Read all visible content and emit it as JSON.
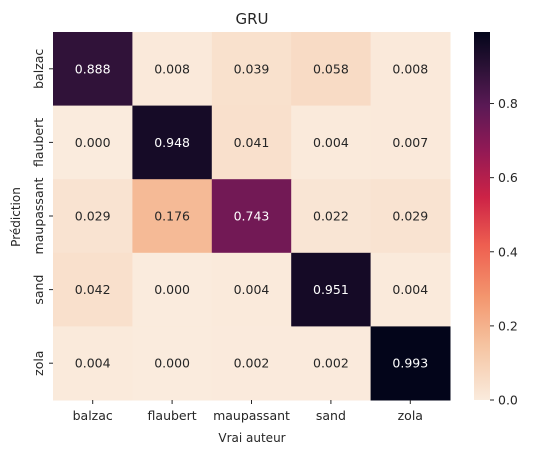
{
  "chart_data": {
    "type": "heatmap",
    "title": "GRU",
    "xlabel": "Vrai auteur",
    "ylabel": "Prédiction",
    "x_categories": [
      "balzac",
      "flaubert",
      "maupassant",
      "sand",
      "zola"
    ],
    "y_categories": [
      "balzac",
      "flaubert",
      "maupassant",
      "sand",
      "zola"
    ],
    "values": [
      [
        0.888,
        0.008,
        0.039,
        0.058,
        0.008
      ],
      [
        0.0,
        0.948,
        0.041,
        0.004,
        0.007
      ],
      [
        0.029,
        0.176,
        0.743,
        0.022,
        0.029
      ],
      [
        0.042,
        0.0,
        0.004,
        0.951,
        0.004
      ],
      [
        0.004,
        0.0,
        0.002,
        0.002,
        0.993
      ]
    ],
    "value_format": "3 decimals",
    "colormap": "rocket_r",
    "colorbar": {
      "range": [
        0,
        0.993
      ],
      "ticks": [
        0.0,
        0.2,
        0.4,
        0.6,
        0.8
      ],
      "tick_labels": [
        "0.0",
        "0.2",
        "0.4",
        "0.6",
        "0.8"
      ]
    },
    "colors": {
      "low": "#faebdd",
      "high": "#03051a",
      "text_dark": "#262626",
      "text_light": "#ffffff"
    }
  }
}
